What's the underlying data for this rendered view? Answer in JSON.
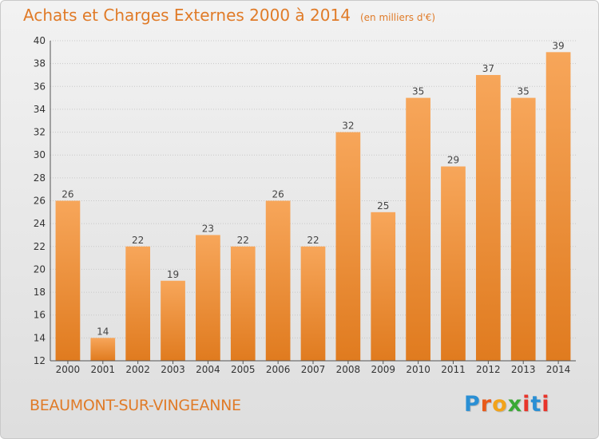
{
  "header": {
    "title": "Achats et Charges Externes 2000 à 2014",
    "subtitle": "(en milliers d'€)"
  },
  "footer": {
    "commune": "BEAUMONT-SUR-VINGEANNE",
    "logo": [
      "P",
      "r",
      "o",
      "x",
      "i",
      "t",
      "i"
    ]
  },
  "colors": {
    "accent": "#e07b28",
    "bar_top": "#f7a65a",
    "bar_bottom": "#e07b1f",
    "logo_letters": [
      "#2a8fd4",
      "#e85a1a",
      "#f2a31a",
      "#3aa935",
      "#e8342a",
      "#2a8fd4",
      "#e8342a"
    ]
  },
  "chart_data": {
    "type": "bar",
    "title": "Achats et Charges Externes 2000 à 2014",
    "subtitle": "(en milliers d'€)",
    "categories": [
      "2000",
      "2001",
      "2002",
      "2003",
      "2004",
      "2005",
      "2006",
      "2007",
      "2008",
      "2009",
      "2010",
      "2011",
      "2012",
      "2013",
      "2014"
    ],
    "values": [
      26,
      14,
      22,
      19,
      23,
      22,
      26,
      22,
      32,
      25,
      35,
      29,
      37,
      35,
      39
    ],
    "ylim": [
      12,
      40
    ],
    "yticks": [
      12,
      14,
      16,
      18,
      20,
      22,
      24,
      26,
      28,
      30,
      32,
      34,
      36,
      38,
      40
    ],
    "grid": true,
    "data_labels": true
  }
}
